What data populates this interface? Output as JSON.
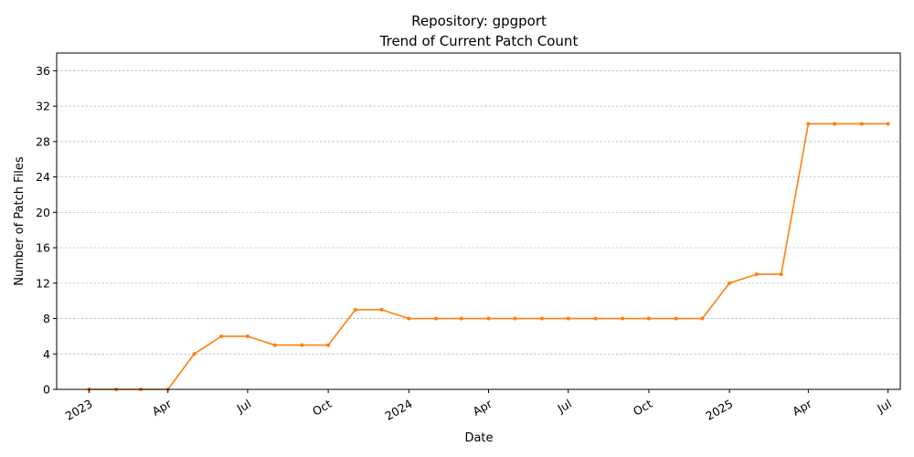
{
  "chart_data": {
    "type": "line",
    "title": "Repository: gpgport",
    "subtitle": "Trend of Current Patch Count",
    "xlabel": "Date",
    "ylabel": "Number of Patch Files",
    "ylim": [
      0,
      38
    ],
    "yticks": [
      0,
      4,
      8,
      12,
      16,
      20,
      24,
      28,
      32,
      36
    ],
    "grid": "horizontal-dashed",
    "line_color": "#ff7f0e",
    "xlim": [
      "2022-11-25",
      "2025-07-15"
    ],
    "xticks": [
      {
        "date": "2023-01-01",
        "label": "2023"
      },
      {
        "date": "2023-04-01",
        "label": "Apr"
      },
      {
        "date": "2023-07-01",
        "label": "Jul"
      },
      {
        "date": "2023-10-01",
        "label": "Oct"
      },
      {
        "date": "2024-01-01",
        "label": "2024"
      },
      {
        "date": "2024-04-01",
        "label": "Apr"
      },
      {
        "date": "2024-07-01",
        "label": "Jul"
      },
      {
        "date": "2024-10-01",
        "label": "Oct"
      },
      {
        "date": "2025-01-01",
        "label": "2025"
      },
      {
        "date": "2025-04-01",
        "label": "Apr"
      },
      {
        "date": "2025-07-01",
        "label": "Jul"
      }
    ],
    "series": [
      {
        "x": [
          "2023-01-01",
          "2023-02-01",
          "2023-03-01",
          "2023-04-01",
          "2023-05-01",
          "2023-06-01",
          "2023-07-01",
          "2023-08-01",
          "2023-09-01",
          "2023-10-01",
          "2023-11-01",
          "2023-12-01",
          "2024-01-01",
          "2024-02-01",
          "2024-03-01",
          "2024-04-01",
          "2024-05-01",
          "2024-06-01",
          "2024-07-01",
          "2024-08-01",
          "2024-09-01",
          "2024-10-01",
          "2024-11-01",
          "2024-12-01",
          "2025-01-01",
          "2025-02-01",
          "2025-03-01",
          "2025-04-01",
          "2025-05-01",
          "2025-06-01",
          "2025-07-01"
        ],
        "values": [
          0,
          0,
          0,
          0,
          4,
          6,
          6,
          5,
          5,
          5,
          9,
          9,
          8,
          8,
          8,
          8,
          8,
          8,
          8,
          8,
          8,
          8,
          8,
          8,
          12,
          13,
          13,
          30,
          30,
          30,
          30
        ]
      }
    ]
  }
}
